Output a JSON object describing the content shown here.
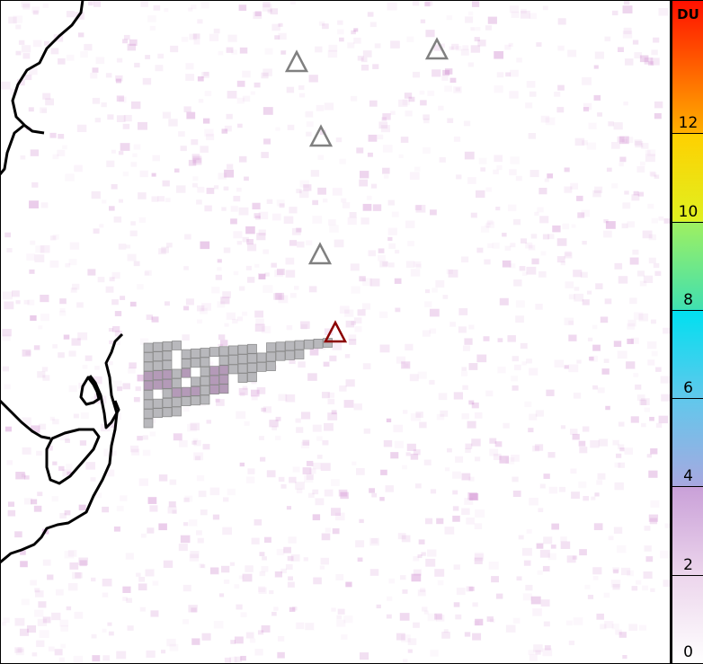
{
  "colorbar": {
    "unit": "DU",
    "range": [
      0,
      15
    ],
    "ticks": [
      "0",
      "2",
      "4",
      "6",
      "8",
      "10",
      "12"
    ],
    "stops": [
      {
        "v": 0,
        "c": "#ffffff"
      },
      {
        "v": 2,
        "c": "#ecd5ec"
      },
      {
        "v": 4,
        "c": "#c9a0d8"
      },
      {
        "v": 4.01,
        "c": "#a8a8e0"
      },
      {
        "v": 6,
        "c": "#60c8ec"
      },
      {
        "v": 8,
        "c": "#00e0f0"
      },
      {
        "v": 8.01,
        "c": "#40e0b0"
      },
      {
        "v": 10,
        "c": "#a0f060"
      },
      {
        "v": 10.01,
        "c": "#e0f020"
      },
      {
        "v": 12,
        "c": "#ffd000"
      },
      {
        "v": 12.01,
        "c": "#ffb000"
      },
      {
        "v": 15,
        "c": "#ff1000"
      }
    ]
  },
  "volcanoes": [
    {
      "status": "inactive",
      "color": "#808080"
    },
    {
      "status": "inactive",
      "color": "#808080"
    },
    {
      "status": "inactive",
      "color": "#808080"
    },
    {
      "status": "inactive",
      "color": "#808080"
    },
    {
      "status": "active",
      "color": "#8b0000"
    }
  ],
  "plume_color": "#b8b8bc",
  "coastline_color": "#000000"
}
